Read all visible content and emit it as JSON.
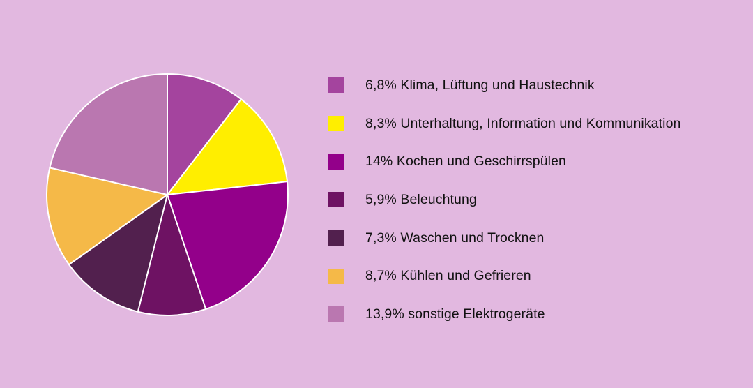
{
  "chart_data": {
    "type": "pie",
    "start_angle_deg": 0,
    "direction": "clockwise",
    "series": [
      {
        "name": "Klima, Lüftung und Haustechnik",
        "label": "6,8% Klima, Lüftung und Haustechnik",
        "value": 6.8,
        "color": "#a4449e"
      },
      {
        "name": "Unterhaltung, Information und Kommunikation",
        "label": "8,3% Unterhaltung, Information und Kommunikation",
        "value": 8.3,
        "color": "#ffee00"
      },
      {
        "name": "Kochen und Geschirrspülen",
        "label": "14% Kochen und Geschirrspülen",
        "value": 14,
        "color": "#93008a"
      },
      {
        "name": "Beleuchtung",
        "label": "5,9% Beleuchtung",
        "value": 5.9,
        "color": "#6e1263"
      },
      {
        "name": "Waschen und Trocknen",
        "label": "7,3% Waschen und Trocknen",
        "value": 7.3,
        "color": "#52204e"
      },
      {
        "name": "Kühlen und Gefrieren",
        "label": "8,7% Kühlen und Gefrieren",
        "value": 8.7,
        "color": "#f5b948"
      },
      {
        "name": "sonstige Elektrogeräte",
        "label": "13,9% sonstige Elektrogeräte",
        "value": 13.9,
        "color": "#ba77b0"
      }
    ],
    "legend_position": "right"
  }
}
